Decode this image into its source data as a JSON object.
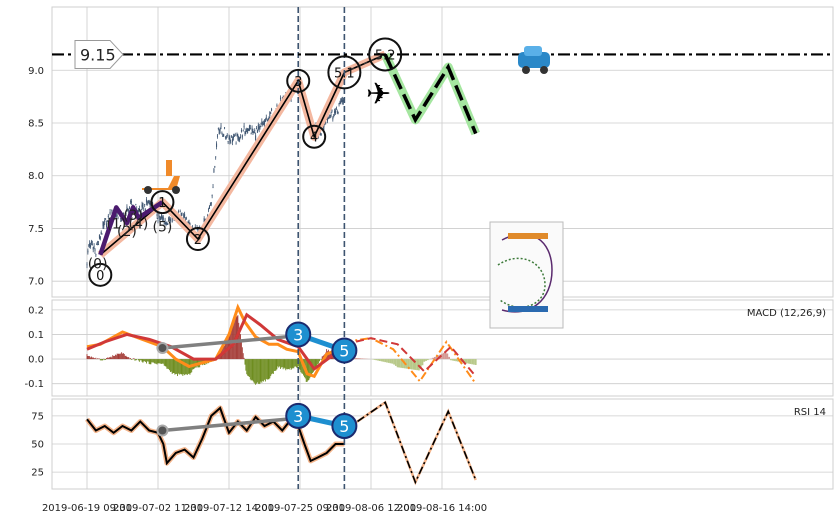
{
  "colors": {
    "candle": "#3d5470",
    "wave_primary": "#000000",
    "wave_primary_glow": "#f4b8a0",
    "wave_sub": "#4b1a6e",
    "macd": "#ff8c1a",
    "signal": "#d03838",
    "hist_pos": "#a33a35",
    "hist_neg": "#6d8c1e",
    "rsi": "#000000",
    "rsi_glow": "#f4b48a",
    "divergence": "#808080",
    "highlight": "#1e8fd0",
    "projection_glow": "#a5e6a0",
    "grid": "#cccccc",
    "vline": "#3d5470"
  },
  "chart_data": [
    {
      "type": "candlestick",
      "panel": "price",
      "x_ticks": [
        "2019-06-19 09:30",
        "2019-07-02 11:30",
        "2019-07-12 14:00",
        "2019-07-25 09:30",
        "2019-08-06 12:00",
        "2019-08-16 14:00"
      ],
      "x_tick_index": [
        0,
        80,
        160,
        240,
        320,
        400
      ],
      "n_bars": 290,
      "ylim": [
        6.85,
        9.6
      ],
      "y_ticks": [
        7.0,
        7.5,
        8.0,
        8.5,
        9.0
      ],
      "price_path": [
        [
          0,
          7.2
        ],
        [
          2,
          7.35
        ],
        [
          10,
          7.3
        ],
        [
          20,
          7.55
        ],
        [
          30,
          7.65
        ],
        [
          40,
          7.6
        ],
        [
          50,
          7.72
        ],
        [
          60,
          7.65
        ],
        [
          70,
          7.75
        ],
        [
          82,
          7.6
        ],
        [
          90,
          7.55
        ],
        [
          100,
          7.62
        ],
        [
          110,
          7.6
        ],
        [
          120,
          7.45
        ],
        [
          130,
          7.5
        ],
        [
          140,
          7.75
        ],
        [
          145,
          8.2
        ],
        [
          148,
          8.45
        ],
        [
          155,
          8.4
        ],
        [
          160,
          8.35
        ],
        [
          170,
          8.35
        ],
        [
          180,
          8.45
        ],
        [
          190,
          8.4
        ],
        [
          200,
          8.5
        ],
        [
          210,
          8.6
        ],
        [
          220,
          8.7
        ],
        [
          230,
          8.75
        ],
        [
          236,
          8.85
        ],
        [
          240,
          8.78
        ],
        [
          250,
          8.6
        ],
        [
          256,
          8.45
        ],
        [
          262,
          8.4
        ],
        [
          270,
          8.55
        ],
        [
          280,
          8.6
        ],
        [
          290,
          8.75
        ]
      ],
      "horizontal_line": {
        "value": 9.15,
        "label": "9.15"
      },
      "wave_points": [
        {
          "i": 15,
          "v": 7.25,
          "label": "0"
        },
        {
          "i": 85,
          "v": 7.75,
          "label": "1"
        },
        {
          "i": 125,
          "v": 7.4,
          "label": "2"
        },
        {
          "i": 238,
          "v": 8.9,
          "label": "3"
        },
        {
          "i": 256,
          "v": 8.37,
          "label": "4"
        },
        {
          "i": 290,
          "v": 8.98,
          "label": "5.1"
        },
        {
          "i": 336,
          "v": 9.15,
          "label": "5.2"
        }
      ],
      "sub_wave_labels": [
        {
          "i": 12,
          "v": 7.12,
          "label": "(0)"
        },
        {
          "i": 33,
          "v": 7.5,
          "label": "(1)"
        },
        {
          "i": 45,
          "v": 7.43,
          "label": "(2)"
        },
        {
          "i": 52,
          "v": 7.58,
          "label": "(3)"
        },
        {
          "i": 58,
          "v": 7.5,
          "label": "(4)"
        },
        {
          "i": 85,
          "v": 7.47,
          "label": "(5)"
        }
      ],
      "sub_wave_path": [
        [
          15,
          7.25
        ],
        [
          33,
          7.7
        ],
        [
          45,
          7.55
        ],
        [
          52,
          7.7
        ],
        [
          58,
          7.6
        ],
        [
          85,
          7.75
        ]
      ],
      "projection": [
        [
          336,
          9.15
        ],
        [
          370,
          8.53
        ],
        [
          407,
          9.03
        ],
        [
          438,
          8.4
        ]
      ],
      "vlines": [
        238,
        290
      ]
    },
    {
      "type": "bar+line",
      "panel": "macd",
      "label": "MACD (12,26,9)",
      "ylim": [
        -0.15,
        0.24
      ],
      "y_ticks": [
        -0.1,
        0.0,
        0.1,
        0.2
      ],
      "macd_path": [
        [
          0,
          0.05
        ],
        [
          15,
          0.06
        ],
        [
          30,
          0.09
        ],
        [
          40,
          0.11
        ],
        [
          55,
          0.09
        ],
        [
          70,
          0.07
        ],
        [
          85,
          0.05
        ],
        [
          100,
          0.0
        ],
        [
          115,
          -0.03
        ],
        [
          125,
          -0.02
        ],
        [
          145,
          0.0
        ],
        [
          160,
          0.1
        ],
        [
          170,
          0.21
        ],
        [
          178,
          0.15
        ],
        [
          190,
          0.09
        ],
        [
          205,
          0.06
        ],
        [
          215,
          0.06
        ],
        [
          225,
          0.04
        ],
        [
          238,
          0.03
        ],
        [
          248,
          -0.06
        ],
        [
          256,
          -0.07
        ],
        [
          270,
          0.02
        ],
        [
          290,
          0.05
        ]
      ],
      "signal_path": [
        [
          0,
          0.04
        ],
        [
          20,
          0.07
        ],
        [
          45,
          0.1
        ],
        [
          70,
          0.08
        ],
        [
          95,
          0.05
        ],
        [
          120,
          0.0
        ],
        [
          145,
          0.0
        ],
        [
          165,
          0.06
        ],
        [
          180,
          0.18
        ],
        [
          195,
          0.14
        ],
        [
          215,
          0.08
        ],
        [
          238,
          0.05
        ],
        [
          256,
          -0.04
        ],
        [
          290,
          0.05
        ]
      ],
      "projection_macd": [
        [
          290,
          0.07
        ],
        [
          320,
          0.085
        ],
        [
          345,
          0.04
        ],
        [
          375,
          -0.09
        ],
        [
          405,
          0.07
        ],
        [
          438,
          -0.1
        ]
      ],
      "projection_signal": [
        [
          290,
          0.06
        ],
        [
          320,
          0.085
        ],
        [
          350,
          0.06
        ],
        [
          380,
          -0.05
        ],
        [
          410,
          0.05
        ],
        [
          438,
          -0.07
        ]
      ],
      "divergence": {
        "from": {
          "i": 85,
          "v": 0.045
        },
        "to": {
          "i": 238,
          "v": 0.095
        }
      },
      "highlight": {
        "from": {
          "i": 238,
          "v": 0.1,
          "label": "3"
        },
        "to": {
          "i": 290,
          "v": 0.035,
          "label": "5"
        }
      }
    },
    {
      "type": "line",
      "panel": "rsi",
      "label": "RSI 14",
      "ylim": [
        10,
        90
      ],
      "y_ticks": [
        25,
        50,
        75
      ],
      "rsi_path": [
        [
          0,
          72
        ],
        [
          10,
          62
        ],
        [
          20,
          66
        ],
        [
          30,
          60
        ],
        [
          40,
          66
        ],
        [
          50,
          62
        ],
        [
          60,
          70
        ],
        [
          70,
          62
        ],
        [
          80,
          60
        ],
        [
          86,
          50
        ],
        [
          90,
          33
        ],
        [
          100,
          42
        ],
        [
          110,
          45
        ],
        [
          120,
          38
        ],
        [
          130,
          55
        ],
        [
          140,
          75
        ],
        [
          150,
          82
        ],
        [
          160,
          60
        ],
        [
          170,
          70
        ],
        [
          180,
          62
        ],
        [
          190,
          74
        ],
        [
          200,
          66
        ],
        [
          210,
          70
        ],
        [
          220,
          62
        ],
        [
          230,
          72
        ],
        [
          238,
          66
        ],
        [
          245,
          50
        ],
        [
          252,
          35
        ],
        [
          260,
          38
        ],
        [
          270,
          42
        ],
        [
          280,
          50
        ],
        [
          290,
          50
        ]
      ],
      "projection": [
        [
          290,
          62
        ],
        [
          336,
          87
        ],
        [
          370,
          16
        ],
        [
          407,
          79
        ],
        [
          438,
          18
        ]
      ],
      "divergence": {
        "from": {
          "i": 85,
          "v": 62
        },
        "to": {
          "i": 238,
          "v": 73
        }
      },
      "highlight": {
        "from": {
          "i": 238,
          "v": 75,
          "label": "3"
        },
        "to": {
          "i": 290,
          "v": 66,
          "label": "5"
        }
      }
    }
  ]
}
